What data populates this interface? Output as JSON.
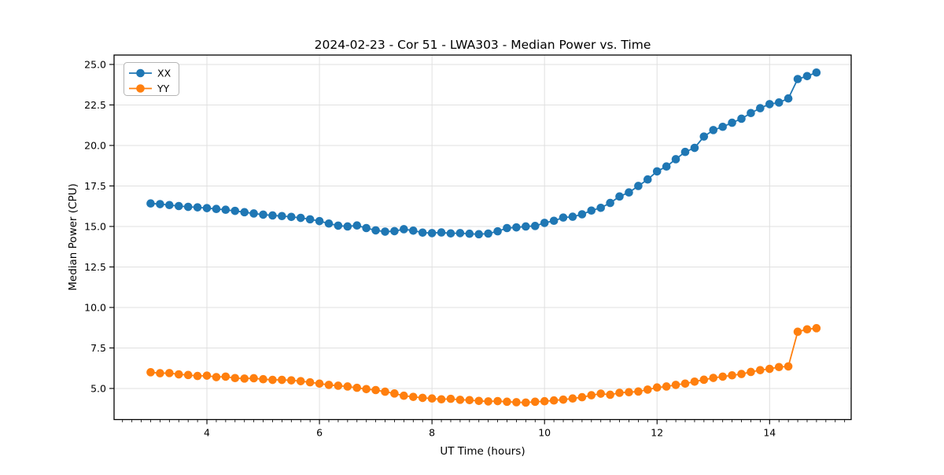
{
  "figure": {
    "background": "#ffffff"
  },
  "colors": {
    "grid": "#e0e0e0",
    "spine": "#000000",
    "text": "#000000",
    "legend_border": "#b5b5b5",
    "legend_background": "#ffffff"
  },
  "chart_data": {
    "type": "line",
    "title": "2024-02-23 - Cor 51 - LWA303 - Median Power vs. Time",
    "xlabel": "UT Time (hours)",
    "ylabel": "Median Power (CPU)",
    "grid": true,
    "legend": {
      "position": "upper-left",
      "entries": [
        "XX",
        "YY"
      ]
    },
    "axes": {
      "xlim": [
        2.35,
        15.45
      ],
      "ylim": [
        3.08,
        25.58
      ],
      "x_minor_tick_step": 0.16667,
      "xticks": {
        "values": [
          4,
          6,
          8,
          10,
          12,
          14
        ],
        "labels": [
          "4",
          "6",
          "8",
          "10",
          "12",
          "14"
        ]
      },
      "yticks": {
        "values": [
          5.0,
          7.5,
          10.0,
          12.5,
          15.0,
          17.5,
          20.0,
          22.5,
          25.0
        ],
        "labels": [
          "5.0",
          "7.5",
          "10.0",
          "12.5",
          "15.0",
          "17.5",
          "20.0",
          "22.5",
          "25.0"
        ]
      }
    },
    "x": [
      3.0,
      3.167,
      3.333,
      3.5,
      3.667,
      3.833,
      4.0,
      4.167,
      4.333,
      4.5,
      4.667,
      4.833,
      5.0,
      5.167,
      5.333,
      5.5,
      5.667,
      5.833,
      6.0,
      6.167,
      6.333,
      6.5,
      6.667,
      6.833,
      7.0,
      7.167,
      7.333,
      7.5,
      7.667,
      7.833,
      8.0,
      8.167,
      8.333,
      8.5,
      8.667,
      8.833,
      9.0,
      9.167,
      9.333,
      9.5,
      9.667,
      9.833,
      10.0,
      10.167,
      10.333,
      10.5,
      10.667,
      10.833,
      11.0,
      11.167,
      11.333,
      11.5,
      11.667,
      11.833,
      12.0,
      12.167,
      12.333,
      12.5,
      12.667,
      12.833,
      13.0,
      13.167,
      13.333,
      13.5,
      13.667,
      13.833,
      14.0,
      14.167,
      14.333,
      14.5,
      14.667,
      14.833
    ],
    "series": [
      {
        "name": "XX",
        "color": "#1f77b4",
        "marker": "circle",
        "values": [
          16.42,
          16.38,
          16.32,
          16.26,
          16.21,
          16.18,
          16.13,
          16.08,
          16.03,
          15.96,
          15.88,
          15.8,
          15.73,
          15.68,
          15.64,
          15.59,
          15.53,
          15.44,
          15.33,
          15.18,
          15.05,
          15.0,
          15.06,
          14.9,
          14.76,
          14.68,
          14.71,
          14.83,
          14.74,
          14.62,
          14.59,
          14.63,
          14.57,
          14.59,
          14.55,
          14.52,
          14.56,
          14.7,
          14.9,
          14.94,
          15.0,
          15.03,
          15.22,
          15.35,
          15.55,
          15.6,
          15.75,
          15.98,
          16.15,
          16.45,
          16.85,
          17.1,
          17.5,
          17.9,
          18.4,
          18.7,
          19.15,
          19.6,
          19.85,
          20.55,
          20.95,
          21.15,
          21.4,
          21.65,
          22.0,
          22.3,
          22.55,
          22.65,
          22.9,
          24.1,
          24.28,
          24.5
        ]
      },
      {
        "name": "YY",
        "color": "#ff7f0e",
        "marker": "circle",
        "values": [
          6.0,
          5.94,
          5.95,
          5.87,
          5.83,
          5.77,
          5.79,
          5.7,
          5.73,
          5.64,
          5.61,
          5.63,
          5.57,
          5.53,
          5.53,
          5.5,
          5.45,
          5.38,
          5.3,
          5.22,
          5.17,
          5.12,
          5.04,
          4.96,
          4.9,
          4.8,
          4.69,
          4.55,
          4.48,
          4.42,
          4.38,
          4.33,
          4.36,
          4.3,
          4.28,
          4.23,
          4.2,
          4.22,
          4.18,
          4.15,
          4.13,
          4.18,
          4.21,
          4.26,
          4.31,
          4.38,
          4.46,
          4.58,
          4.68,
          4.61,
          4.73,
          4.77,
          4.81,
          4.93,
          5.06,
          5.12,
          5.22,
          5.3,
          5.42,
          5.54,
          5.65,
          5.73,
          5.81,
          5.89,
          6.02,
          6.13,
          6.21,
          6.32,
          6.36,
          8.5,
          8.65,
          8.72
        ]
      }
    ]
  }
}
